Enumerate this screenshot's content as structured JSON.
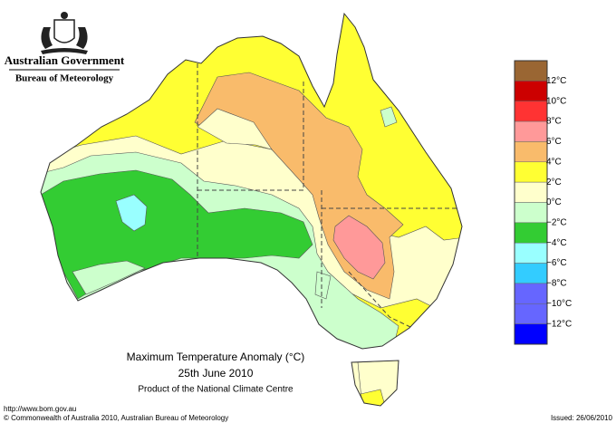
{
  "header": {
    "government": "Australian Government",
    "bureau": "Bureau of Meteorology"
  },
  "map": {
    "title": "Maximum Temperature Anomaly (°C)",
    "date": "25th June 2010",
    "product": "Product of the National Climate Centre"
  },
  "legend": {
    "labels": [
      "12°C",
      "10°C",
      "8°C",
      "6°C",
      "4°C",
      "2°C",
      "0°C",
      "−2°C",
      "−4°C",
      "−6°C",
      "−8°C",
      "−10°C",
      "−12°C"
    ],
    "colors": [
      "#9a6633",
      "#cc0000",
      "#ff3333",
      "#ff9999",
      "#f9bb6b",
      "#ffff33",
      "#ffffcc",
      "#ccffcc",
      "#33cc33",
      "#99ffff",
      "#33ccff",
      "#6666ff",
      "#6666ff",
      "#0000ff"
    ]
  },
  "footer": {
    "url": "http://www.bom.gov.au",
    "copyright": "© Commonwealth of Australia 2010, Australian Bureau of Meteorology",
    "issued": "Issued: 26/06/2010"
  }
}
